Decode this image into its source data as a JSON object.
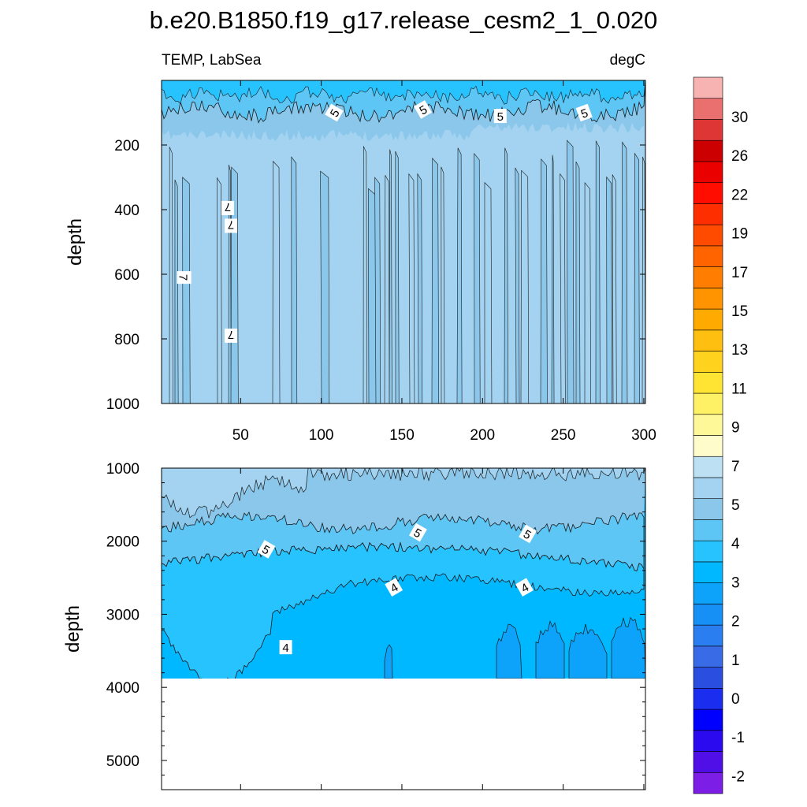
{
  "chart_data": {
    "type": "heatmap",
    "title": "b.e20.B1850.f19_g17.release_cesm2_1_0.020",
    "subtitle_left": "TEMP, LabSea",
    "subtitle_right": "degC",
    "panels": [
      {
        "name": "upper",
        "ylabel": "depth",
        "xlim": [
          1,
          301
        ],
        "ylim": [
          0,
          1000
        ],
        "x_ticks": [
          "50",
          "100",
          "150",
          "200",
          "250",
          "300"
        ],
        "x_tick_values": [
          50,
          100,
          150,
          200,
          250,
          300
        ],
        "y_ticks": [
          "200",
          "400",
          "600",
          "800",
          "1000"
        ],
        "y_tick_values": [
          200,
          400,
          600,
          800,
          1000
        ],
        "contour_labels": [
          {
            "text": "5",
            "x": 108,
            "y": 100
          },
          {
            "text": "5",
            "x": 163,
            "y": 90
          },
          {
            "text": "5",
            "x": 211,
            "y": 110
          },
          {
            "text": "5",
            "x": 263,
            "y": 100
          },
          {
            "text": "7",
            "x": 42,
            "y": 395
          },
          {
            "text": "7",
            "x": 44,
            "y": 450
          },
          {
            "text": "7",
            "x": 15,
            "y": 610
          },
          {
            "text": "7",
            "x": 44,
            "y": 790
          }
        ]
      },
      {
        "name": "lower",
        "ylabel": "depth",
        "xlim": [
          1,
          301
        ],
        "ylim": [
          1000,
          5400
        ],
        "y_ticks": [
          "1000",
          "2000",
          "3000",
          "4000",
          "5000"
        ],
        "y_tick_values": [
          1000,
          2000,
          3000,
          4000,
          5000
        ],
        "contour_labels": [
          {
            "text": "5",
            "x": 66,
            "y": 2110
          },
          {
            "text": "5",
            "x": 160,
            "y": 1880
          },
          {
            "text": "5",
            "x": 228,
            "y": 1900
          },
          {
            "text": "4",
            "x": 145,
            "y": 2630
          },
          {
            "text": "4",
            "x": 226,
            "y": 2630
          },
          {
            "text": "4",
            "x": 78,
            "y": 3450
          }
        ]
      }
    ],
    "colorbar": {
      "labels": [
        "30",
        "26",
        "22",
        "19",
        "17",
        "15",
        "13",
        "11",
        "9",
        "7",
        "5",
        "4",
        "3",
        "2",
        "1",
        "0",
        "-1",
        "-2"
      ],
      "colors": [
        "#7c1ee6",
        "#4f0fe6",
        "#2c0af0",
        "#0000ff",
        "#1b2ef0",
        "#2a4ee0",
        "#3a6be6",
        "#2a7ef0",
        "#1690f5",
        "#0da3fa",
        "#00b8ff",
        "#26c3ff",
        "#5ec6f5",
        "#8ac7eb",
        "#a3d3f0",
        "#bde0f3",
        "#fffccc",
        "#fff899",
        "#fff166",
        "#ffe433",
        "#ffd21e",
        "#ffbf10",
        "#ffaa00",
        "#ff9400",
        "#ff7d00",
        "#ff6400",
        "#ff4b00",
        "#ff2e00",
        "#ff0d00",
        "#eb0000",
        "#cc0000",
        "#de3535",
        "#ea7070",
        "#f7b2b2"
      ]
    }
  }
}
